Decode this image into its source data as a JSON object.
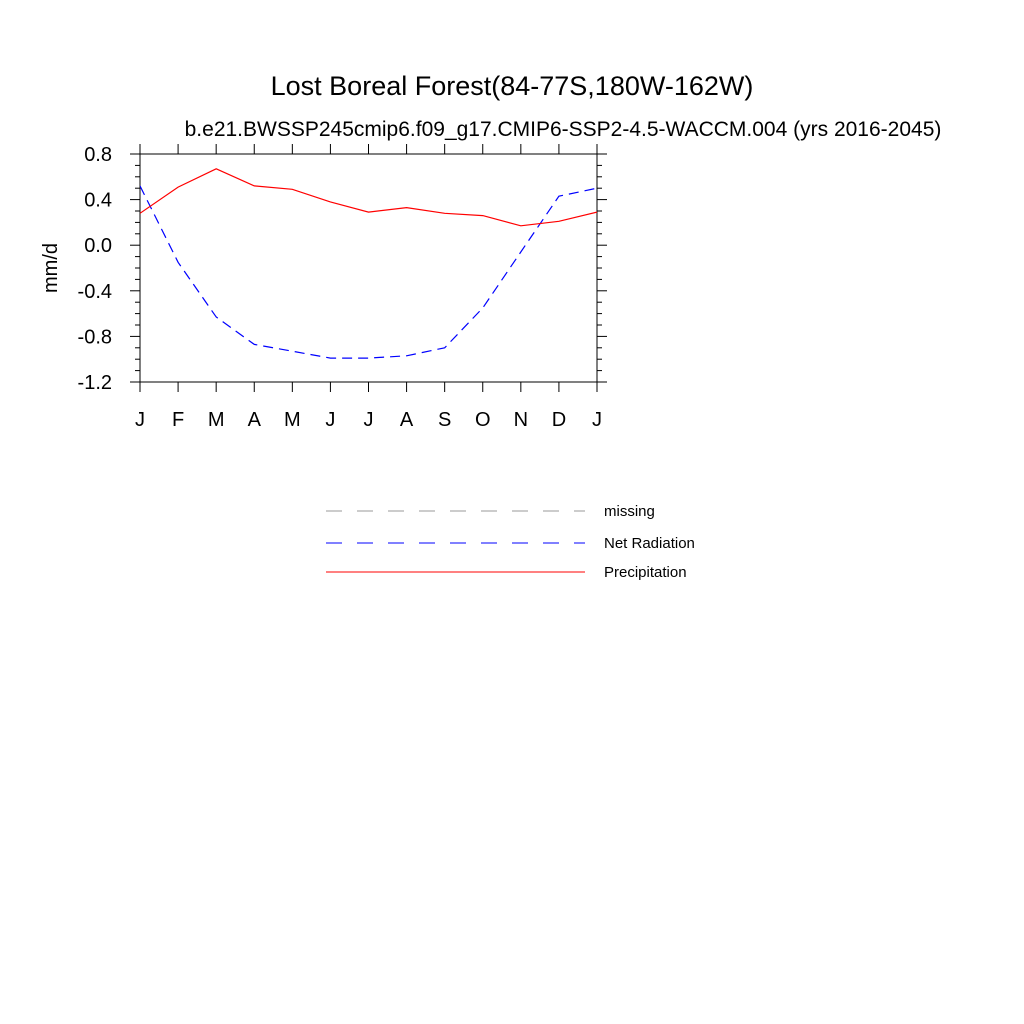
{
  "chart_data": {
    "type": "line",
    "title": "Lost Boreal Forest(84-77S,180W-162W)",
    "subtitle": "b.e21.BWSSP245cmip6.f09_g17.CMIP6-SSP2-4.5-WACCM.004 (yrs 2016-2045)",
    "ylabel": "mm/d",
    "xlabel": "",
    "ylim": [
      -1.2,
      0.8
    ],
    "y_ticks": [
      "0.8",
      "0.4",
      "0.0",
      "-0.4",
      "-0.8",
      "-1.2"
    ],
    "y_tick_values": [
      0.8,
      0.4,
      0.0,
      -0.4,
      -0.8,
      -1.2
    ],
    "categories": [
      "J",
      "F",
      "M",
      "A",
      "M",
      "J",
      "J",
      "A",
      "S",
      "O",
      "N",
      "D",
      "J"
    ],
    "series": [
      {
        "name": "Net Radiation",
        "color": "#0000ff",
        "dash": "dashed",
        "values": [
          0.52,
          -0.15,
          -0.63,
          -0.87,
          -0.93,
          -0.99,
          -0.99,
          -0.97,
          -0.9,
          -0.55,
          -0.06,
          0.43,
          0.5
        ]
      },
      {
        "name": "Precipitation",
        "color": "#ff0000",
        "dash": "solid",
        "values": [
          0.28,
          0.51,
          0.67,
          0.52,
          0.49,
          0.38,
          0.29,
          0.33,
          0.28,
          0.26,
          0.17,
          0.21,
          0.29
        ]
      }
    ],
    "legend": {
      "placement": "below",
      "entries": [
        {
          "label": "missing",
          "color": "#999999",
          "dash": "dashed"
        },
        {
          "label": "Net Radiation",
          "color": "#0000ff",
          "dash": "dashed"
        },
        {
          "label": "Precipitation",
          "color": "#ff0000",
          "dash": "solid"
        }
      ]
    },
    "grid": false
  }
}
